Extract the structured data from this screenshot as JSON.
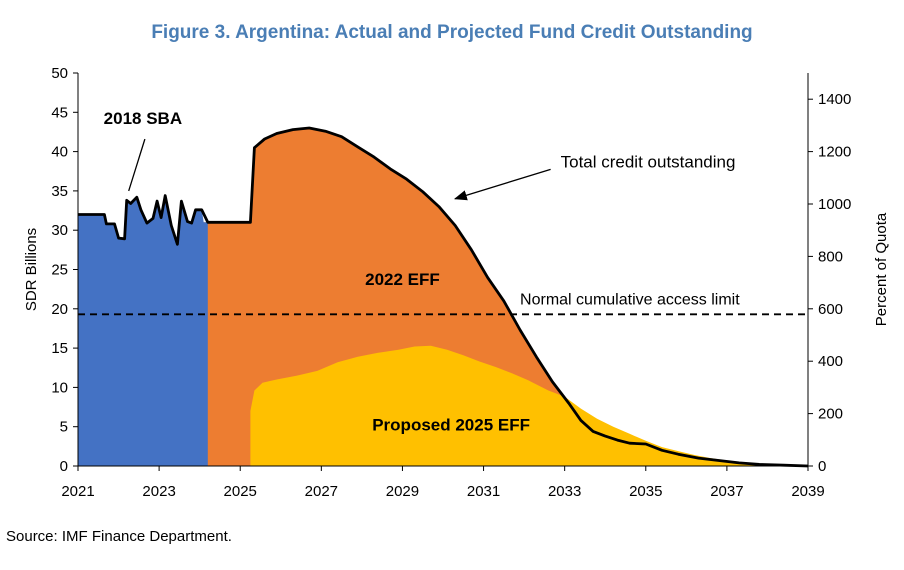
{
  "chart_data": {
    "type": "area",
    "title": "Figure 3. Argentina: Actual and Projected Fund Credit Outstanding",
    "ylabel": "SDR Billions",
    "y2label": "Percent of Quota",
    "xlim": [
      2021,
      2039
    ],
    "ylim": [
      0,
      50
    ],
    "y2lim": [
      0,
      1500
    ],
    "x_ticks": [
      2021,
      2023,
      2025,
      2027,
      2029,
      2031,
      2033,
      2035,
      2037,
      2039
    ],
    "y_ticks": [
      0,
      5,
      10,
      15,
      20,
      25,
      30,
      35,
      40,
      45,
      50
    ],
    "y2_ticks": [
      0,
      200,
      400,
      600,
      800,
      1000,
      1200,
      1400
    ],
    "grid": false,
    "legend": "none",
    "colors": {
      "sba": "#4472c4",
      "eff2022": "#ed7d31",
      "eff2025": "#ffc000",
      "total_line": "#000000",
      "title": "#4a7eb5"
    },
    "series": [
      {
        "name": "Proposed 2025 EFF",
        "points": [
          [
            2025.25,
            0
          ],
          [
            2025.25,
            7
          ],
          [
            2025.35,
            9.6
          ],
          [
            2025.55,
            10.6
          ],
          [
            2025.9,
            11.0
          ],
          [
            2026.4,
            11.5
          ],
          [
            2026.9,
            12.1
          ],
          [
            2027.4,
            13.2
          ],
          [
            2027.9,
            13.9
          ],
          [
            2028.4,
            14.4
          ],
          [
            2028.9,
            14.8
          ],
          [
            2029.3,
            15.2
          ],
          [
            2029.7,
            15.3
          ],
          [
            2030.1,
            14.8
          ],
          [
            2030.5,
            14.1
          ],
          [
            2030.9,
            13.3
          ],
          [
            2031.3,
            12.6
          ],
          [
            2031.7,
            11.8
          ],
          [
            2032.1,
            10.9
          ],
          [
            2032.6,
            9.6
          ],
          [
            2033.0,
            8.8
          ],
          [
            2033.4,
            7.3
          ],
          [
            2033.8,
            6.0
          ],
          [
            2034.2,
            5.0
          ],
          [
            2034.6,
            4.1
          ],
          [
            2035.0,
            3.2
          ],
          [
            2035.4,
            2.4
          ],
          [
            2035.8,
            1.9
          ],
          [
            2036.2,
            1.4
          ],
          [
            2036.6,
            1.0
          ],
          [
            2037.0,
            0.7
          ],
          [
            2037.4,
            0.4
          ],
          [
            2037.8,
            0.2
          ],
          [
            2038.2,
            0.1
          ],
          [
            2038.8,
            0
          ]
        ]
      },
      {
        "name": "2022 EFF",
        "points": [
          [
            2022.15,
            0
          ],
          [
            2022.15,
            7
          ],
          [
            2022.35,
            10
          ],
          [
            2022.55,
            13.5
          ],
          [
            2022.75,
            16.5
          ],
          [
            2022.95,
            19.3
          ],
          [
            2023.15,
            21.9
          ],
          [
            2023.35,
            24.6
          ],
          [
            2023.55,
            27.3
          ],
          [
            2023.75,
            30.4
          ],
          [
            2023.95,
            31.0
          ],
          [
            2025.25,
            31.0
          ],
          [
            2025.35,
            40.5
          ],
          [
            2025.6,
            41.6
          ],
          [
            2025.9,
            42.3
          ],
          [
            2026.3,
            42.8
          ],
          [
            2026.7,
            43.0
          ],
          [
            2027.1,
            42.6
          ],
          [
            2027.5,
            41.9
          ],
          [
            2027.9,
            40.6
          ],
          [
            2028.3,
            39.3
          ],
          [
            2028.7,
            37.8
          ],
          [
            2029.1,
            36.5
          ],
          [
            2029.5,
            34.9
          ],
          [
            2029.9,
            33.0
          ],
          [
            2030.3,
            30.6
          ],
          [
            2030.7,
            27.5
          ],
          [
            2031.1,
            24.0
          ],
          [
            2031.5,
            21.0
          ],
          [
            2031.9,
            17.3
          ],
          [
            2032.3,
            13.9
          ],
          [
            2032.7,
            10.7
          ],
          [
            2033.1,
            8.0
          ],
          [
            2033.4,
            5.8
          ],
          [
            2033.7,
            4.4
          ],
          [
            2034.0,
            3.8
          ],
          [
            2034.3,
            3.3
          ],
          [
            2034.6,
            2.9
          ],
          [
            2035.0,
            2.8
          ],
          [
            2035.4,
            2.0
          ],
          [
            2035.8,
            1.5
          ],
          [
            2036.3,
            1.0
          ],
          [
            2036.8,
            0.7
          ],
          [
            2037.3,
            0.4
          ],
          [
            2037.8,
            0.2
          ],
          [
            2038.4,
            0.1
          ],
          [
            2039.0,
            0
          ]
        ]
      },
      {
        "name": "2018 SBA",
        "points": [
          [
            2021,
            0
          ],
          [
            2021,
            32
          ],
          [
            2021.65,
            32
          ],
          [
            2021.7,
            30.8
          ],
          [
            2021.9,
            30.8
          ],
          [
            2022.0,
            29.0
          ],
          [
            2022.15,
            28.9
          ],
          [
            2022.2,
            33.8
          ],
          [
            2022.3,
            33.4
          ],
          [
            2022.45,
            34.2
          ],
          [
            2022.55,
            32.6
          ],
          [
            2022.7,
            30.9
          ],
          [
            2022.85,
            31.5
          ],
          [
            2022.95,
            33.7
          ],
          [
            2023.05,
            31.6
          ],
          [
            2023.15,
            34.4
          ],
          [
            2023.3,
            30.6
          ],
          [
            2023.45,
            28.2
          ],
          [
            2023.55,
            33.7
          ],
          [
            2023.7,
            31.1
          ],
          [
            2023.8,
            30.9
          ],
          [
            2023.9,
            32.6
          ],
          [
            2024.05,
            32.6
          ],
          [
            2024.1,
            31.0
          ],
          [
            2024.2,
            31.0
          ],
          [
            2024.2,
            0
          ]
        ]
      },
      {
        "name": "Total credit outstanding",
        "points": [
          [
            2021,
            32
          ],
          [
            2021.65,
            32
          ],
          [
            2021.7,
            30.8
          ],
          [
            2021.9,
            30.8
          ],
          [
            2022.0,
            29.0
          ],
          [
            2022.15,
            28.9
          ],
          [
            2022.2,
            33.8
          ],
          [
            2022.3,
            33.4
          ],
          [
            2022.45,
            34.2
          ],
          [
            2022.55,
            32.6
          ],
          [
            2022.7,
            30.9
          ],
          [
            2022.85,
            31.5
          ],
          [
            2022.95,
            33.7
          ],
          [
            2023.05,
            31.6
          ],
          [
            2023.15,
            34.4
          ],
          [
            2023.3,
            30.6
          ],
          [
            2023.45,
            28.2
          ],
          [
            2023.55,
            33.7
          ],
          [
            2023.7,
            31.1
          ],
          [
            2023.8,
            30.9
          ],
          [
            2023.9,
            32.6
          ],
          [
            2024.05,
            32.6
          ],
          [
            2024.2,
            31.0
          ],
          [
            2025.25,
            31.0
          ],
          [
            2025.35,
            40.5
          ],
          [
            2025.6,
            41.6
          ],
          [
            2025.9,
            42.3
          ],
          [
            2026.3,
            42.8
          ],
          [
            2026.7,
            43.0
          ],
          [
            2027.1,
            42.6
          ],
          [
            2027.5,
            41.9
          ],
          [
            2027.9,
            40.6
          ],
          [
            2028.3,
            39.3
          ],
          [
            2028.7,
            37.8
          ],
          [
            2029.1,
            36.5
          ],
          [
            2029.5,
            34.9
          ],
          [
            2029.9,
            33.0
          ],
          [
            2030.3,
            30.6
          ],
          [
            2030.7,
            27.5
          ],
          [
            2031.1,
            24.0
          ],
          [
            2031.5,
            21.0
          ],
          [
            2031.9,
            17.3
          ],
          [
            2032.3,
            13.9
          ],
          [
            2032.7,
            10.7
          ],
          [
            2033.1,
            8.0
          ],
          [
            2033.4,
            5.8
          ],
          [
            2033.7,
            4.4
          ],
          [
            2034.0,
            3.8
          ],
          [
            2034.3,
            3.3
          ],
          [
            2034.6,
            2.9
          ],
          [
            2035.0,
            2.8
          ],
          [
            2035.4,
            2.0
          ],
          [
            2035.8,
            1.5
          ],
          [
            2036.3,
            1.0
          ],
          [
            2036.8,
            0.7
          ],
          [
            2037.3,
            0.4
          ],
          [
            2037.8,
            0.2
          ],
          [
            2038.4,
            0.1
          ],
          [
            2039.0,
            0
          ]
        ]
      }
    ],
    "reference_line": {
      "label": "Normal cumulative access limit",
      "y": 19.3
    },
    "annotations": [
      {
        "text": "2018 SBA",
        "x": 2022.6,
        "y": 43.5,
        "bold": true,
        "arrow_to": [
          2022.25,
          35.0
        ]
      },
      {
        "text": "2022 EFF",
        "x": 2029.0,
        "y": 23.0,
        "bold": true
      },
      {
        "text": "Proposed 2025 EFF",
        "x": 2030.2,
        "y": 4.5,
        "bold": true
      },
      {
        "text": "Total credit outstanding",
        "x": 2032.9,
        "y": 38.0,
        "bold": false,
        "arrow_to": [
          2030.3,
          34.0
        ]
      }
    ],
    "source": "Source: IMF Finance Department."
  }
}
